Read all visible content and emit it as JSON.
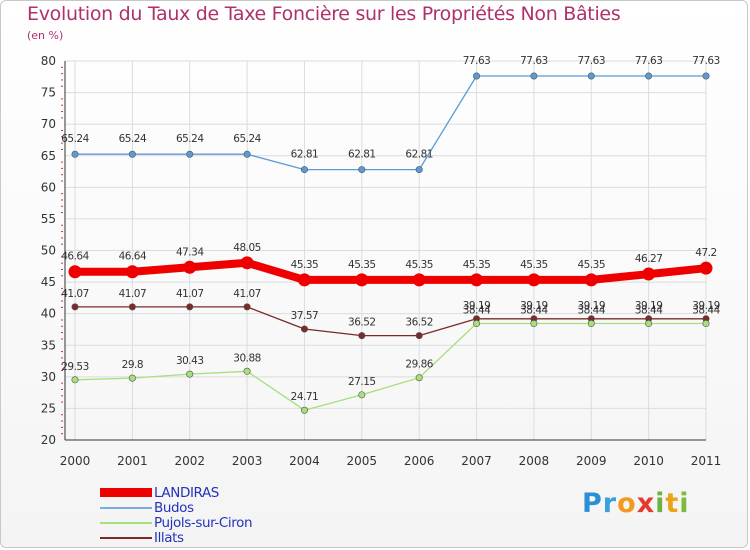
{
  "chart_data": {
    "type": "line",
    "title": "Evolution du Taux de Taxe Foncière sur les Propriétés Non Bâties",
    "ylabel": "(en %)",
    "xlabel": "",
    "categories": [
      "2000",
      "2001",
      "2002",
      "2003",
      "2004",
      "2005",
      "2006",
      "2007",
      "2008",
      "2009",
      "2010",
      "2011"
    ],
    "yticks": [
      "20",
      "25",
      "30",
      "35",
      "40",
      "45",
      "50",
      "55",
      "60",
      "65",
      "70",
      "75",
      "80"
    ],
    "ylim": [
      20,
      80
    ],
    "grid": true,
    "legend_position": "bottom-left",
    "series": [
      {
        "name": "Budos",
        "color": "#5b9bd5",
        "values": [
          65.24,
          65.24,
          65.24,
          65.24,
          62.81,
          62.81,
          62.81,
          77.63,
          77.63,
          77.63,
          77.63,
          77.63
        ],
        "labels": [
          "65.24",
          "65.24",
          "65.24",
          "65.24",
          "62.81",
          "62.81",
          "62.81",
          "77.63",
          "77.63",
          "77.63",
          "77.63",
          "77.63"
        ]
      },
      {
        "name": "Illats",
        "color": "#7b2a2a",
        "values": [
          41.07,
          41.07,
          41.07,
          41.07,
          37.57,
          36.52,
          36.52,
          39.19,
          39.19,
          39.19,
          39.19,
          39.19
        ],
        "labels": [
          "41.07",
          "41.07",
          "41.07",
          "41.07",
          "37.57",
          "36.52",
          "36.52",
          "39.19",
          "39.19",
          "39.19",
          "39.19",
          "39.19"
        ]
      },
      {
        "name": "Pujols-sur-Ciron",
        "color": "#a6e07a",
        "values": [
          29.53,
          29.8,
          30.43,
          30.88,
          24.71,
          27.15,
          29.86,
          38.44,
          38.44,
          38.44,
          38.44,
          38.44
        ],
        "labels": [
          "29.53",
          "29.8",
          "30.43",
          "30.88",
          "24.71",
          "27.15",
          "29.86",
          "38.44",
          "38.44",
          "38.44",
          "38.44",
          "38.44"
        ]
      },
      {
        "name": "LANDIRAS",
        "color": "#ee0000",
        "values": [
          46.64,
          46.64,
          47.34,
          48.05,
          45.35,
          45.35,
          45.35,
          45.35,
          45.35,
          45.35,
          46.27,
          47.2
        ],
        "labels": [
          "46.64",
          "46.64",
          "47.34",
          "48.05",
          "45.35",
          "45.35",
          "45.35",
          "45.35",
          "45.35",
          "45.35",
          "46.27",
          "47.2"
        ]
      }
    ],
    "legend": [
      {
        "name": "LANDIRAS",
        "color": "#ee0000",
        "weight": "thick"
      },
      {
        "name": "Budos",
        "color": "#7aaee0",
        "weight": "thin"
      },
      {
        "name": "Pujols-sur-Ciron",
        "color": "#a6e07a",
        "weight": "thin"
      },
      {
        "name": "Illats",
        "color": "#7b2a2a",
        "weight": "thin"
      }
    ]
  },
  "logo": {
    "letters": [
      "P",
      "r",
      "o",
      "x",
      "i",
      "t",
      "i"
    ],
    "colors": [
      "#2a8fd6",
      "#3aa0e0",
      "#f39a1e",
      "#e8382c",
      "#6cb33f",
      "#e8a41a",
      "#7dbb3c"
    ]
  }
}
